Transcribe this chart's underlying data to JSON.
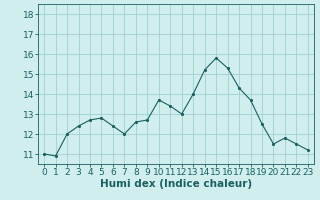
{
  "title": "",
  "xlabel": "Humi dex (Indice chaleur)",
  "ylabel": "",
  "x_values": [
    0,
    1,
    2,
    3,
    4,
    5,
    6,
    7,
    8,
    9,
    10,
    11,
    12,
    13,
    14,
    15,
    16,
    17,
    18,
    19,
    20,
    21,
    22,
    23
  ],
  "y_values": [
    11.0,
    10.9,
    12.0,
    12.4,
    12.7,
    12.8,
    12.4,
    12.0,
    12.6,
    12.7,
    13.7,
    13.4,
    13.0,
    14.0,
    15.2,
    15.8,
    15.3,
    14.3,
    13.7,
    12.5,
    11.5,
    11.8,
    11.5,
    11.2
  ],
  "line_color": "#1a6060",
  "marker_color": "#1a6060",
  "bg_color": "#d0eeee",
  "grid_color": "#a0d0d0",
  "y_min": 10.5,
  "y_max": 18.5,
  "x_min": -0.5,
  "x_max": 23.5,
  "y_ticks": [
    11,
    12,
    13,
    14,
    15,
    16,
    17,
    18
  ],
  "x_ticks": [
    0,
    1,
    2,
    3,
    4,
    5,
    6,
    7,
    8,
    9,
    10,
    11,
    12,
    13,
    14,
    15,
    16,
    17,
    18,
    19,
    20,
    21,
    22,
    23
  ],
  "tick_fontsize": 6.5,
  "label_fontsize": 7.5,
  "xlabel_label": "Humi dex (Indice chaleur)"
}
